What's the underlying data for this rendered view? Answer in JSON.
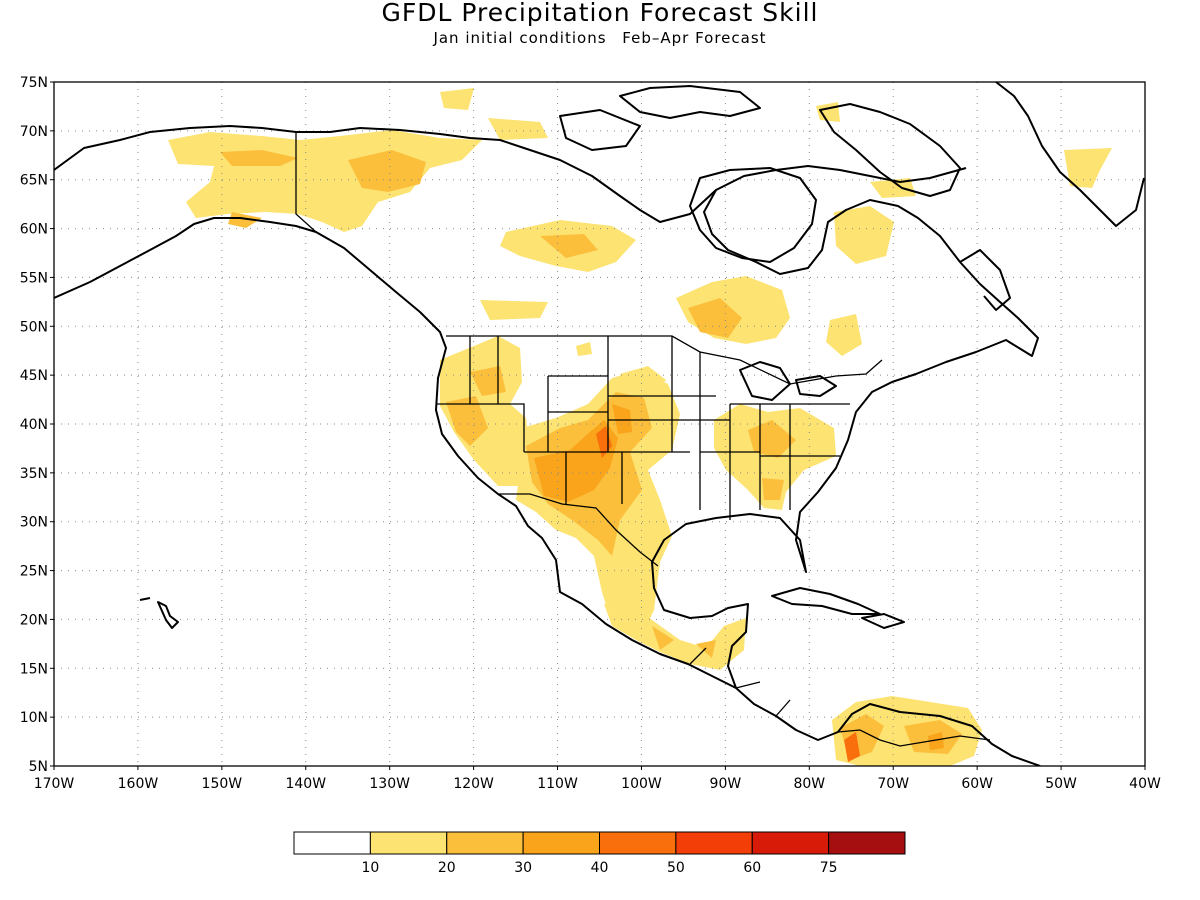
{
  "header": {
    "title": "GFDL Precipitation Forecast Skill",
    "subtitle_left": "Jan initial conditions",
    "subtitle_right": "Feb–Apr Forecast"
  },
  "map": {
    "lat_labels": [
      "75N",
      "70N",
      "65N",
      "60N",
      "55N",
      "50N",
      "45N",
      "40N",
      "35N",
      "30N",
      "25N",
      "20N",
      "15N",
      "10N",
      "5N"
    ],
    "lon_labels": [
      "170W",
      "160W",
      "150W",
      "140W",
      "130W",
      "120W",
      "110W",
      "100W",
      "90W",
      "80W",
      "70W",
      "60W",
      "50W",
      "40W"
    ],
    "lon_range": [
      -170,
      -40
    ],
    "lat_range": [
      5,
      75
    ],
    "grid": "dotted"
  },
  "legend": {
    "colors": [
      "#ffffff",
      "#fde372",
      "#fbbf3c",
      "#f9a41b",
      "#f86f0c",
      "#f33e08",
      "#d81b08",
      "#a50f0f"
    ],
    "labels": [
      "10",
      "20",
      "30",
      "40",
      "50",
      "60",
      "75"
    ]
  }
}
